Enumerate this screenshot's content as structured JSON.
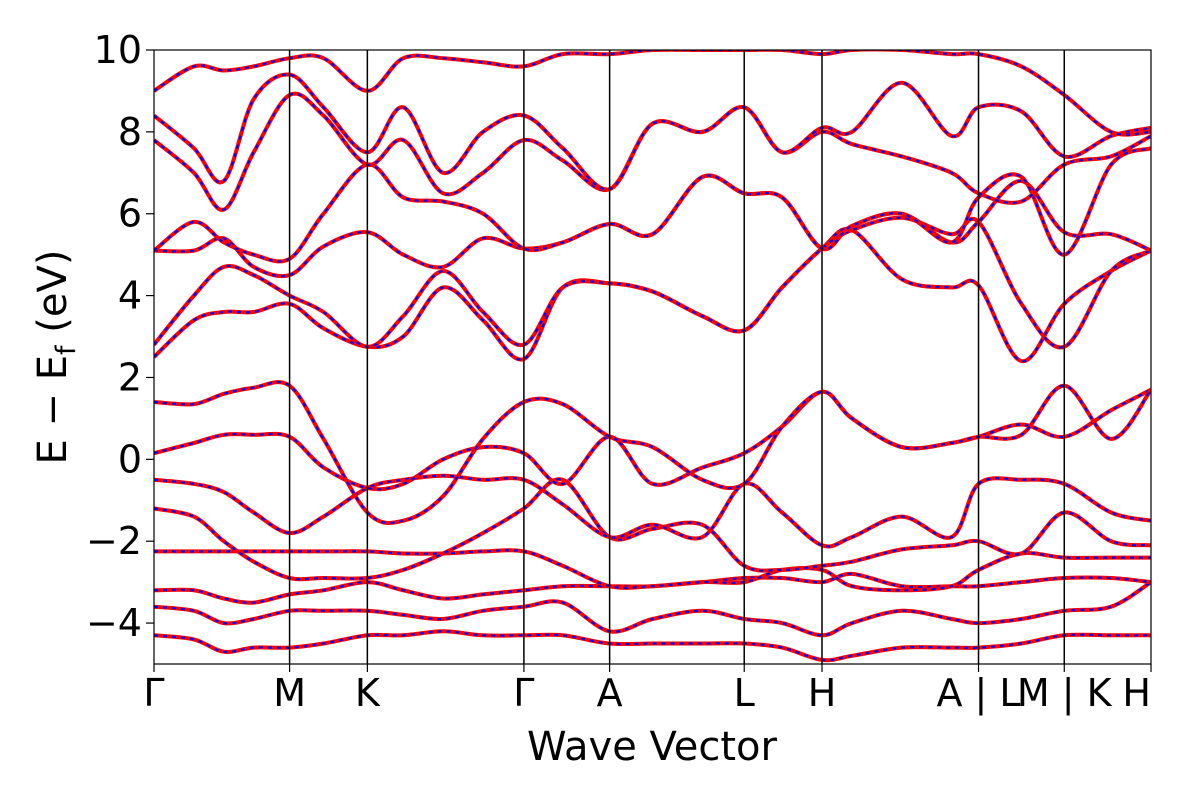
{
  "chart_data": {
    "type": "line",
    "title": "",
    "xlabel": "Wave Vector",
    "ylabel_main": "E − E",
    "ylabel_sub": "f",
    "ylabel_unit": " (eV)",
    "ylim": [
      -5,
      10
    ],
    "xlim": [
      0,
      1
    ],
    "grid": false,
    "legend": "none",
    "yticks": [
      {
        "value": -4,
        "label": "−4"
      },
      {
        "value": -2,
        "label": "−2"
      },
      {
        "value": 0,
        "label": "0"
      },
      {
        "value": 2,
        "label": "2"
      },
      {
        "value": 4,
        "label": "4"
      },
      {
        "value": 6,
        "label": "6"
      },
      {
        "value": 8,
        "label": "8"
      },
      {
        "value": 10,
        "label": "10"
      }
    ],
    "kpoints": [
      {
        "label": "Γ",
        "x": 0.0
      },
      {
        "label": "M",
        "x": 0.136
      },
      {
        "label": "K",
        "x": 0.214
      },
      {
        "label": "Γ",
        "x": 0.371
      },
      {
        "label": "A",
        "x": 0.457
      },
      {
        "label": "L",
        "x": 0.592
      },
      {
        "label": "H",
        "x": 0.67
      },
      {
        "label": "A | L",
        "x": 0.827
      },
      {
        "label": "M | K",
        "x": 0.913
      },
      {
        "label": "H",
        "x": 1.0
      }
    ],
    "divider_positions": [
      0.136,
      0.214,
      0.371,
      0.457,
      0.592,
      0.67,
      0.827,
      0.913
    ],
    "colors": {
      "series_a": "#ff0000",
      "series_b": "#0000ff",
      "axes": "#000000"
    },
    "series_names": [
      "band (red solid)",
      "band (blue dashed)"
    ],
    "bands": [
      {
        "x": [
          0,
          0.04,
          0.07,
          0.1,
          0.136,
          0.17,
          0.214,
          0.25,
          0.29,
          0.33,
          0.371,
          0.41,
          0.457,
          0.5,
          0.55,
          0.592,
          0.63,
          0.67,
          0.7,
          0.75,
          0.8,
          0.827,
          0.87,
          0.913,
          0.96,
          1.0
        ],
        "y": [
          -4.3,
          -4.4,
          -4.7,
          -4.6,
          -4.6,
          -4.5,
          -4.3,
          -4.3,
          -4.2,
          -4.3,
          -4.3,
          -4.3,
          -4.5,
          -4.5,
          -4.5,
          -4.5,
          -4.6,
          -4.9,
          -4.8,
          -4.6,
          -4.6,
          -4.6,
          -4.5,
          -4.3,
          -4.3,
          -4.3
        ]
      },
      {
        "x": [
          0,
          0.04,
          0.07,
          0.1,
          0.136,
          0.17,
          0.214,
          0.25,
          0.29,
          0.33,
          0.371,
          0.41,
          0.457,
          0.5,
          0.55,
          0.592,
          0.63,
          0.67,
          0.7,
          0.75,
          0.8,
          0.827,
          0.87,
          0.913,
          0.96,
          1.0
        ],
        "y": [
          -3.6,
          -3.7,
          -4.0,
          -3.9,
          -3.7,
          -3.7,
          -3.7,
          -3.8,
          -3.9,
          -3.7,
          -3.6,
          -3.5,
          -4.2,
          -3.9,
          -3.7,
          -3.9,
          -4.0,
          -4.3,
          -4.0,
          -3.7,
          -3.9,
          -4.0,
          -3.9,
          -3.7,
          -3.6,
          -3.0
        ]
      },
      {
        "x": [
          0,
          0.04,
          0.07,
          0.1,
          0.136,
          0.17,
          0.214,
          0.25,
          0.29,
          0.33,
          0.371,
          0.41,
          0.457,
          0.5,
          0.55,
          0.592,
          0.63,
          0.67,
          0.7,
          0.75,
          0.8,
          0.827,
          0.87,
          0.913,
          0.96,
          1.0
        ],
        "y": [
          -3.2,
          -3.2,
          -3.4,
          -3.5,
          -3.3,
          -3.2,
          -3.0,
          -3.2,
          -3.4,
          -3.3,
          -3.2,
          -3.1,
          -3.1,
          -3.1,
          -3.0,
          -2.9,
          -2.9,
          -3.0,
          -2.8,
          -3.1,
          -3.1,
          -3.1,
          -3.0,
          -2.9,
          -2.9,
          -3.0
        ]
      },
      {
        "x": [
          0,
          0.04,
          0.07,
          0.1,
          0.136,
          0.17,
          0.214,
          0.25,
          0.29,
          0.33,
          0.371,
          0.41,
          0.457,
          0.5,
          0.55,
          0.592,
          0.63,
          0.67,
          0.7,
          0.75,
          0.8,
          0.827,
          0.87,
          0.913,
          0.96,
          1.0
        ],
        "y": [
          -2.25,
          -2.25,
          -2.25,
          -2.25,
          -2.25,
          -2.25,
          -2.25,
          -2.3,
          -2.3,
          -2.25,
          -2.25,
          -2.6,
          -3.1,
          -3.1,
          -3.0,
          -3.0,
          -2.7,
          -2.7,
          -3.1,
          -3.2,
          -3.1,
          -2.7,
          -2.3,
          -2.4,
          -2.4,
          -2.4
        ]
      },
      {
        "x": [
          0,
          0.04,
          0.07,
          0.1,
          0.136,
          0.17,
          0.214,
          0.25,
          0.29,
          0.33,
          0.371,
          0.41,
          0.457,
          0.5,
          0.55,
          0.592,
          0.63,
          0.67,
          0.7,
          0.75,
          0.8,
          0.827,
          0.87,
          0.913,
          0.96,
          1.0
        ],
        "y": [
          -1.2,
          -1.4,
          -2.0,
          -2.5,
          -2.9,
          -2.9,
          -2.9,
          -2.7,
          -2.3,
          -1.8,
          -1.2,
          -0.5,
          -1.9,
          -1.7,
          -1.6,
          -2.6,
          -2.7,
          -2.6,
          -2.5,
          -2.2,
          -2.1,
          -2.0,
          -2.3,
          -1.3,
          -2.0,
          -2.1
        ]
      },
      {
        "x": [
          0,
          0.04,
          0.07,
          0.1,
          0.136,
          0.17,
          0.214,
          0.25,
          0.29,
          0.33,
          0.371,
          0.41,
          0.457,
          0.5,
          0.55,
          0.592,
          0.63,
          0.67,
          0.7,
          0.75,
          0.8,
          0.827,
          0.87,
          0.913,
          0.96,
          1.0
        ],
        "y": [
          -0.5,
          -0.6,
          -0.8,
          -1.3,
          -1.8,
          -1.4,
          -0.7,
          -0.5,
          -0.4,
          -0.5,
          -0.5,
          -1.1,
          -1.9,
          -1.6,
          -1.9,
          -0.6,
          -1.3,
          -2.1,
          -1.9,
          -1.4,
          -1.9,
          -0.6,
          -0.5,
          -0.6,
          -1.3,
          -1.5
        ]
      },
      {
        "x": [
          0,
          0.04,
          0.07,
          0.1,
          0.136,
          0.17,
          0.214,
          0.25,
          0.29,
          0.33,
          0.371,
          0.41,
          0.457,
          0.5,
          0.55,
          0.592,
          0.63,
          0.67,
          0.7,
          0.75,
          0.8,
          0.827,
          0.87,
          0.913,
          0.96,
          1.0
        ],
        "y": [
          0.15,
          0.4,
          0.6,
          0.6,
          0.55,
          -0.2,
          -0.7,
          -0.6,
          0.0,
          0.3,
          0.15,
          -0.6,
          0.55,
          -0.6,
          -0.2,
          0.15,
          0.8,
          1.65,
          1.0,
          0.3,
          0.4,
          0.55,
          0.85,
          0.55,
          1.2,
          1.7
        ]
      },
      {
        "x": [
          0,
          0.04,
          0.07,
          0.1,
          0.136,
          0.17,
          0.214,
          0.25,
          0.29,
          0.33,
          0.371,
          0.41,
          0.457,
          0.5,
          0.55,
          0.592,
          0.63,
          0.67,
          0.7,
          0.75,
          0.8,
          0.827,
          0.87,
          0.913,
          0.96,
          1.0
        ],
        "y": [
          1.4,
          1.35,
          1.6,
          1.75,
          1.8,
          0.5,
          -1.3,
          -1.5,
          -0.9,
          0.5,
          1.4,
          1.35,
          0.55,
          0.3,
          -0.5,
          -0.6,
          0.8,
          1.65,
          1.0,
          0.3,
          0.4,
          0.55,
          0.6,
          1.8,
          0.5,
          1.7
        ]
      },
      {
        "x": [
          0,
          0.04,
          0.07,
          0.1,
          0.136,
          0.17,
          0.214,
          0.25,
          0.29,
          0.33,
          0.371,
          0.41,
          0.457,
          0.5,
          0.55,
          0.592,
          0.63,
          0.67,
          0.7,
          0.75,
          0.8,
          0.827,
          0.87,
          0.913,
          0.96,
          1.0
        ],
        "y": [
          2.5,
          3.4,
          3.6,
          3.6,
          3.8,
          3.2,
          2.75,
          3.0,
          4.2,
          3.4,
          2.45,
          4.2,
          4.3,
          4.1,
          3.5,
          3.15,
          4.2,
          5.15,
          5.6,
          4.4,
          4.2,
          4.25,
          2.4,
          3.8,
          4.6,
          5.1
        ]
      },
      {
        "x": [
          0,
          0.04,
          0.07,
          0.1,
          0.136,
          0.17,
          0.214,
          0.25,
          0.29,
          0.33,
          0.371,
          0.41,
          0.457,
          0.5,
          0.55,
          0.592,
          0.63,
          0.67,
          0.7,
          0.75,
          0.8,
          0.827,
          0.87,
          0.913,
          0.96,
          1.0
        ],
        "y": [
          2.8,
          4.0,
          4.7,
          4.5,
          4.0,
          3.6,
          2.75,
          3.5,
          4.6,
          3.6,
          2.8,
          4.2,
          4.3,
          4.1,
          3.5,
          3.15,
          4.2,
          5.15,
          5.6,
          5.9,
          5.5,
          5.8,
          3.8,
          2.75,
          4.6,
          5.1
        ]
      },
      {
        "x": [
          0,
          0.04,
          0.07,
          0.1,
          0.136,
          0.17,
          0.214,
          0.25,
          0.29,
          0.33,
          0.371,
          0.41,
          0.457,
          0.5,
          0.55,
          0.592,
          0.63,
          0.67,
          0.7,
          0.75,
          0.8,
          0.827,
          0.87,
          0.913,
          0.96,
          1.0
        ],
        "y": [
          5.1,
          5.1,
          5.4,
          4.7,
          4.5,
          5.2,
          5.55,
          5.0,
          4.7,
          5.4,
          5.15,
          5.3,
          5.75,
          5.5,
          6.9,
          6.5,
          6.4,
          5.15,
          5.7,
          6.0,
          5.3,
          5.8,
          6.8,
          5.55,
          5.5,
          5.1
        ]
      },
      {
        "x": [
          0,
          0.04,
          0.07,
          0.1,
          0.136,
          0.17,
          0.214,
          0.25,
          0.29,
          0.33,
          0.371,
          0.41,
          0.457,
          0.5,
          0.55,
          0.592,
          0.63,
          0.67,
          0.7,
          0.75,
          0.8,
          0.827,
          0.87,
          0.913,
          0.96,
          1.0
        ],
        "y": [
          5.1,
          5.8,
          5.3,
          5.0,
          4.9,
          6.0,
          7.2,
          6.4,
          6.3,
          6.0,
          5.15,
          5.3,
          5.75,
          5.5,
          6.9,
          6.5,
          6.4,
          5.15,
          5.7,
          6.0,
          5.3,
          6.4,
          6.9,
          5.0,
          7.2,
          7.6
        ]
      },
      {
        "x": [
          0,
          0.04,
          0.07,
          0.1,
          0.136,
          0.17,
          0.214,
          0.25,
          0.29,
          0.33,
          0.371,
          0.41,
          0.457,
          0.5,
          0.55,
          0.592,
          0.63,
          0.67,
          0.7,
          0.75,
          0.8,
          0.827,
          0.87,
          0.913,
          0.96,
          1.0
        ],
        "y": [
          7.8,
          7.0,
          6.1,
          7.5,
          8.9,
          8.4,
          7.2,
          7.8,
          6.5,
          7.0,
          7.8,
          7.3,
          6.6,
          8.2,
          8.0,
          8.6,
          7.5,
          8.0,
          7.7,
          7.4,
          7.0,
          6.5,
          6.3,
          7.2,
          7.4,
          7.9
        ]
      },
      {
        "x": [
          0,
          0.04,
          0.07,
          0.1,
          0.136,
          0.17,
          0.214,
          0.25,
          0.29,
          0.33,
          0.371,
          0.41,
          0.457,
          0.5,
          0.55,
          0.592,
          0.63,
          0.67,
          0.7,
          0.75,
          0.8,
          0.827,
          0.87,
          0.913,
          0.96,
          1.0
        ],
        "y": [
          8.4,
          7.6,
          6.8,
          8.8,
          9.4,
          8.6,
          7.5,
          8.6,
          7.0,
          8.0,
          8.4,
          7.6,
          6.6,
          8.2,
          8.0,
          8.6,
          7.5,
          8.1,
          8.0,
          9.2,
          7.9,
          8.6,
          8.5,
          7.4,
          7.9,
          8.1
        ]
      },
      {
        "x": [
          0,
          0.04,
          0.07,
          0.1,
          0.136,
          0.17,
          0.214,
          0.25,
          0.29,
          0.33,
          0.371,
          0.41,
          0.457,
          0.5,
          0.55,
          0.592,
          0.63,
          0.67,
          0.7,
          0.75,
          0.8,
          0.827,
          0.87,
          0.913,
          0.96,
          1.0
        ],
        "y": [
          9.0,
          9.6,
          9.5,
          9.6,
          9.8,
          9.8,
          9.0,
          9.8,
          9.8,
          9.7,
          9.6,
          9.9,
          9.9,
          10.0,
          10.0,
          10.0,
          10.0,
          9.9,
          10.0,
          10.0,
          9.9,
          9.9,
          9.6,
          8.9,
          8.0,
          8.0
        ]
      }
    ]
  }
}
